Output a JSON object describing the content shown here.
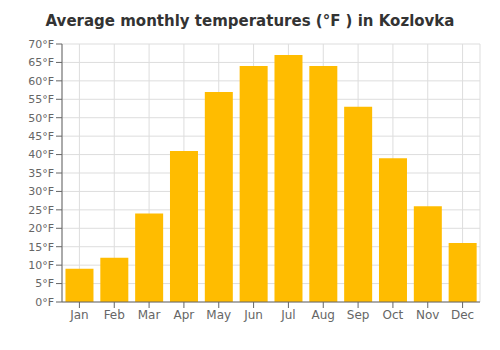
{
  "chart_data": {
    "type": "bar",
    "title": "Average monthly temperatures (°F ) in Kozlovka",
    "categories": [
      "Jan",
      "Feb",
      "Mar",
      "Apr",
      "May",
      "Jun",
      "Jul",
      "Aug",
      "Sep",
      "Oct",
      "Nov",
      "Dec"
    ],
    "values": [
      9,
      12,
      24,
      41,
      57,
      64,
      67,
      64,
      53,
      39,
      26,
      16
    ],
    "color": "#FFBC00",
    "ylim": [
      0,
      70
    ],
    "yticks": [
      {
        "value": 0,
        "label": "0°F"
      },
      {
        "value": 5,
        "label": "5°F"
      },
      {
        "value": 10,
        "label": "10°F"
      },
      {
        "value": 15,
        "label": "15°F"
      },
      {
        "value": 20,
        "label": "20°F"
      },
      {
        "value": 25,
        "label": "25°F"
      },
      {
        "value": 30,
        "label": "30°F"
      },
      {
        "value": 35,
        "label": "35°F"
      },
      {
        "value": 40,
        "label": "40°F"
      },
      {
        "value": 45,
        "label": "45°F"
      },
      {
        "value": 50,
        "label": "50°F"
      },
      {
        "value": 55,
        "label": "55°F"
      },
      {
        "value": 60,
        "label": "60°F"
      },
      {
        "value": 65,
        "label": "65°F"
      },
      {
        "value": 70,
        "label": "70°F"
      }
    ],
    "grid": true
  }
}
